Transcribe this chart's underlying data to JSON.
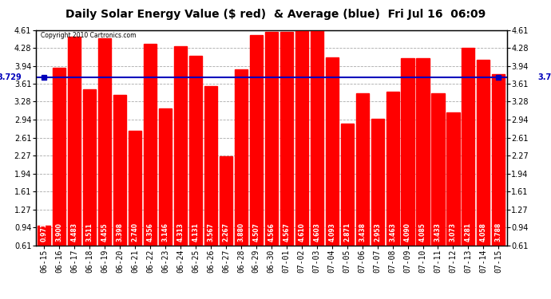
{
  "title": "Daily Solar Energy Value ($ red)  & Average (blue)  Fri Jul 16  06:09",
  "copyright": "Copyright 2010 Cartronics.com",
  "average": 3.729,
  "categories": [
    "06-15",
    "06-16",
    "06-17",
    "06-18",
    "06-19",
    "06-20",
    "06-21",
    "06-22",
    "06-23",
    "06-24",
    "06-25",
    "06-26",
    "06-27",
    "06-28",
    "06-29",
    "06-30",
    "07-01",
    "07-02",
    "07-03",
    "07-04",
    "07-05",
    "07-06",
    "07-07",
    "07-08",
    "07-09",
    "07-10",
    "07-11",
    "07-12",
    "07-13",
    "07-14",
    "07-15"
  ],
  "values": [
    0.971,
    3.9,
    4.483,
    3.511,
    4.455,
    3.398,
    2.74,
    4.356,
    3.146,
    4.313,
    4.131,
    3.567,
    2.267,
    3.88,
    4.507,
    4.566,
    4.567,
    4.61,
    4.603,
    4.093,
    2.871,
    3.438,
    2.953,
    3.463,
    4.09,
    4.085,
    3.433,
    3.073,
    4.281,
    4.058,
    3.788
  ],
  "bar_color": "#ff0000",
  "line_color": "#0000bb",
  "background_color": "#ffffff",
  "plot_bg_color": "#ffffff",
  "grid_color": "#aaaaaa",
  "yticks": [
    0.61,
    0.94,
    1.27,
    1.61,
    1.94,
    2.27,
    2.61,
    2.94,
    3.28,
    3.61,
    3.94,
    4.28,
    4.61
  ],
  "ymin": 0.61,
  "ymax": 4.61,
  "title_fontsize": 10,
  "tick_fontsize": 7,
  "value_fontsize": 5.5,
  "avg_label_fontsize": 7,
  "bar_width": 0.85
}
